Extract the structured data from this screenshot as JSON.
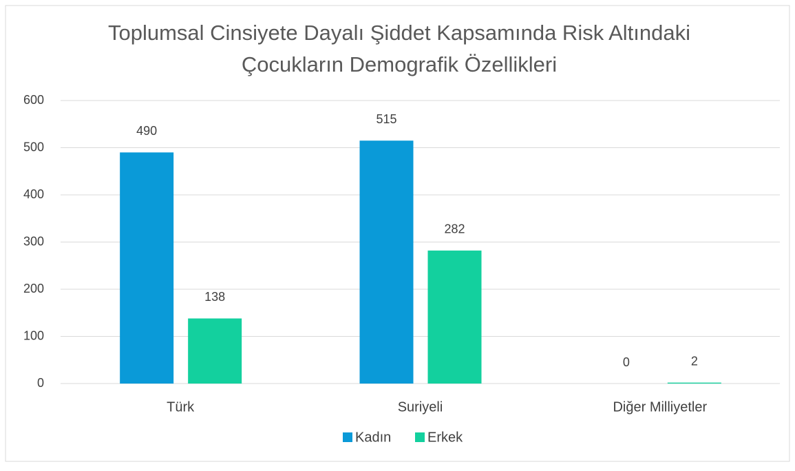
{
  "chart_data": {
    "type": "bar",
    "title": [
      "Toplumsal Cinsiyete Dayalı Şiddet Kapsamında Risk Altındaki",
      "Çocukların Demografik Özellikleri"
    ],
    "categories": [
      "Türk",
      "Suriyeli",
      "Diğer Milliyetler"
    ],
    "series": [
      {
        "name": "Kadın",
        "color": "#0a9ad8",
        "values": [
          490,
          515,
          0
        ]
      },
      {
        "name": "Erkek",
        "color": "#13d09e",
        "values": [
          138,
          282,
          2
        ]
      }
    ],
    "ylim": [
      0,
      600
    ],
    "yticks": [
      0,
      100,
      200,
      300,
      400,
      500,
      600
    ],
    "grid": true,
    "legend": "bottom"
  }
}
